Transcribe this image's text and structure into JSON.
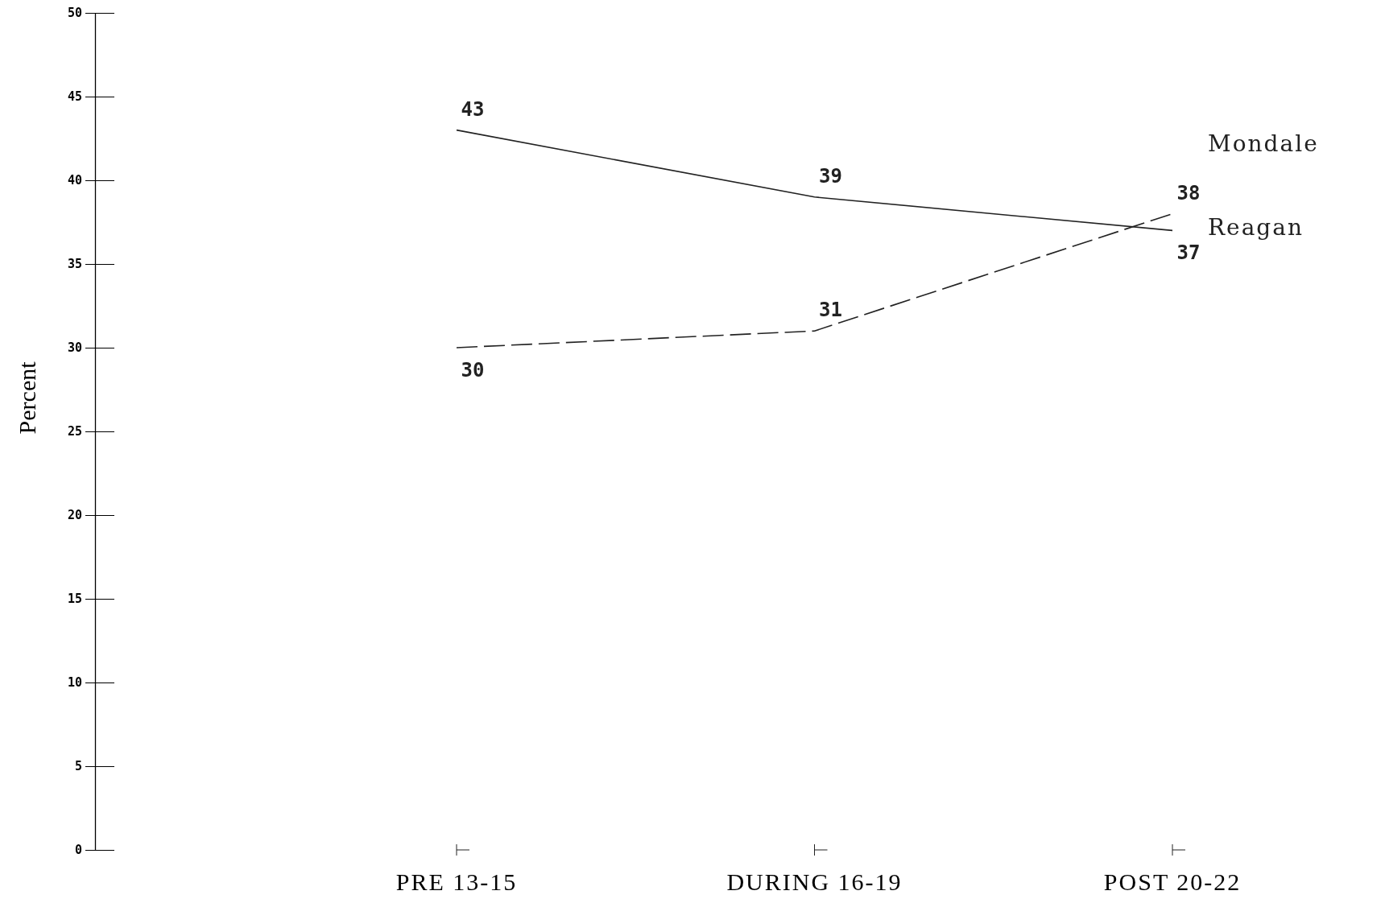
{
  "chart_data": {
    "type": "line",
    "ylabel": "Percent",
    "categories": [
      "PRE 13-15",
      "DURING 16-19",
      "POST 20-22"
    ],
    "series": [
      {
        "name": "Reagan",
        "color": "#222222",
        "line_style": "solid",
        "values": [
          43,
          39,
          37
        ]
      },
      {
        "name": "Mondale",
        "color": "#222222",
        "line_style": "dashed",
        "values": [
          30,
          31,
          38
        ]
      }
    ],
    "ylim": [
      0,
      50
    ],
    "yticks": [
      0,
      5,
      10,
      15,
      20,
      25,
      30,
      35,
      40,
      45,
      50
    ],
    "data_labels": true,
    "grid": false,
    "marker": "none"
  }
}
